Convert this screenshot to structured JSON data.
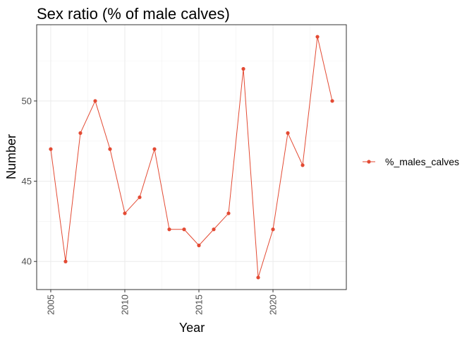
{
  "chart_data": {
    "type": "line",
    "title": "Sex ratio (% of male calves)",
    "xlabel": "Year",
    "ylabel": "Number",
    "x": [
      2005,
      2006,
      2007,
      2008,
      2009,
      2010,
      2011,
      2012,
      2013,
      2014,
      2015,
      2016,
      2017,
      2018,
      2019,
      2020,
      2021,
      2022,
      2023,
      2024
    ],
    "series": [
      {
        "name": "%_males_calves",
        "values": [
          47,
          40,
          48,
          50,
          47,
          43,
          44,
          47,
          42,
          42,
          41,
          42,
          43,
          52,
          39,
          42,
          48,
          46,
          54,
          50
        ],
        "color": "#e34a33"
      }
    ],
    "xlim": [
      2004.05,
      2024.95
    ],
    "ylim": [
      38.25,
      54.75
    ],
    "x_ticks": [
      2005,
      2010,
      2015,
      2020
    ],
    "y_ticks": [
      40,
      45,
      50
    ],
    "x_tick_labels": [
      "2005",
      "2010",
      "2015",
      "2020"
    ],
    "y_tick_labels": [
      "40",
      "45",
      "50"
    ],
    "grid": true,
    "legend_position": "right"
  }
}
